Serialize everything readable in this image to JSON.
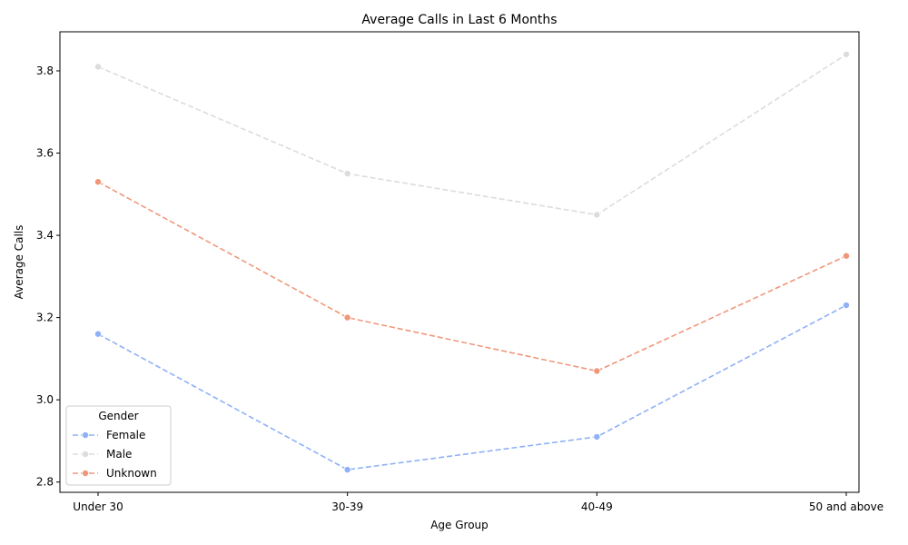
{
  "chart_data": {
    "type": "line",
    "title": "Average Calls in Last 6 Months",
    "xlabel": "Age Group",
    "ylabel": "Average Calls",
    "categories": [
      "Under 30",
      "30-39",
      "40-49",
      "50 and above"
    ],
    "ylim": [
      2.775,
      3.895
    ],
    "yticks": [
      2.8,
      3.0,
      3.2,
      3.4,
      3.6,
      3.8
    ],
    "ytick_labels": [
      "2.8",
      "3.0",
      "3.2",
      "3.4",
      "3.6",
      "3.8"
    ],
    "grid": false,
    "line_style": "dashed",
    "marker": "circle",
    "legend": {
      "title": "Gender",
      "placement": "lower-left"
    },
    "series": [
      {
        "name": "Female",
        "color": "#8eb1f7",
        "values": [
          3.16,
          2.83,
          2.91,
          3.23
        ]
      },
      {
        "name": "Male",
        "color": "#dddcdc",
        "values": [
          3.81,
          3.55,
          3.45,
          3.84
        ]
      },
      {
        "name": "Unknown",
        "color": "#f0977a",
        "values": [
          3.53,
          3.2,
          3.07,
          3.35
        ]
      }
    ]
  }
}
